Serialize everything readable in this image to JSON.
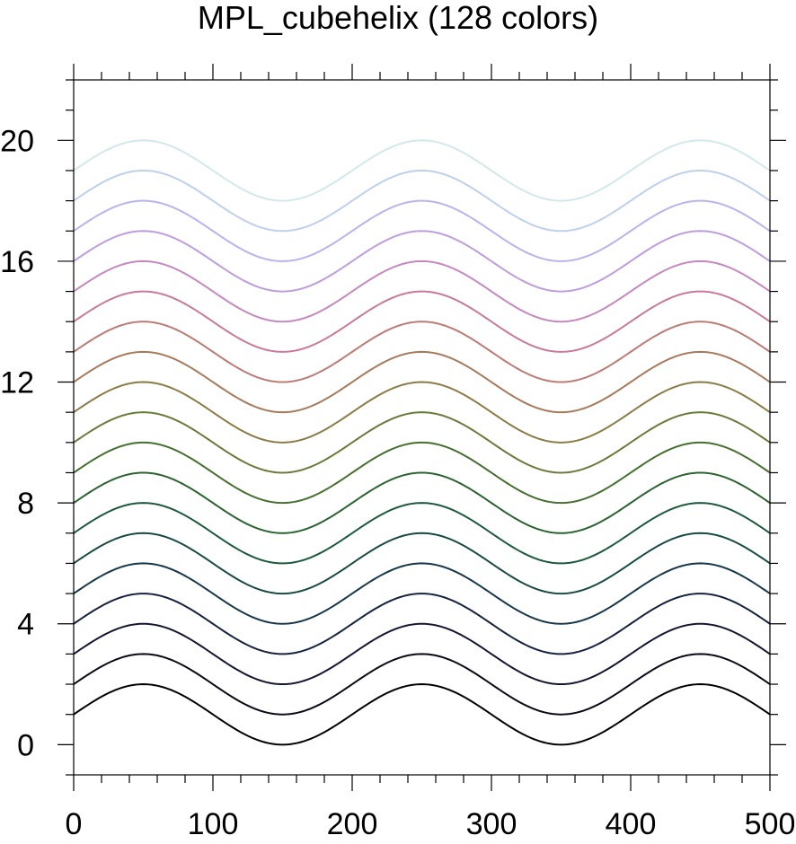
{
  "chart_data": {
    "type": "line",
    "title": "MPL_cubehelix (128 colors)",
    "xlabel": "",
    "ylabel": "",
    "xlim": [
      0,
      500
    ],
    "ylim": [
      -1,
      22
    ],
    "x_ticks": [
      0,
      100,
      200,
      300,
      400,
      500
    ],
    "y_ticks": [
      0,
      4,
      8,
      12,
      16,
      20
    ],
    "grid": false,
    "legend": "none",
    "curve": {
      "amplitude": 1,
      "period": 200,
      "phase_peak_x": 50,
      "step_offset": 1
    },
    "series": [
      {
        "offset": 1,
        "color": "#000000"
      },
      {
        "offset": 2,
        "color": "#0b0918"
      },
      {
        "offset": 3,
        "color": "#151632"
      },
      {
        "offset": 4,
        "color": "#17243f"
      },
      {
        "offset": 5,
        "color": "#17384a"
      },
      {
        "offset": 6,
        "color": "#184a46"
      },
      {
        "offset": 7,
        "color": "#1b5a3b"
      },
      {
        "offset": 8,
        "color": "#2b6432"
      },
      {
        "offset": 9,
        "color": "#46702f"
      },
      {
        "offset": 10,
        "color": "#697a39"
      },
      {
        "offset": 11,
        "color": "#8a7c45"
      },
      {
        "offset": 12,
        "color": "#a87a5c"
      },
      {
        "offset": 13,
        "color": "#bd7b76"
      },
      {
        "offset": 14,
        "color": "#c9799a"
      },
      {
        "offset": 15,
        "color": "#c688bf"
      },
      {
        "offset": 16,
        "color": "#bd9ddf"
      },
      {
        "offset": 17,
        "color": "#b9b3ee"
      },
      {
        "offset": 18,
        "color": "#bfd0ed"
      },
      {
        "offset": 19,
        "color": "#d3e8ec"
      }
    ]
  }
}
